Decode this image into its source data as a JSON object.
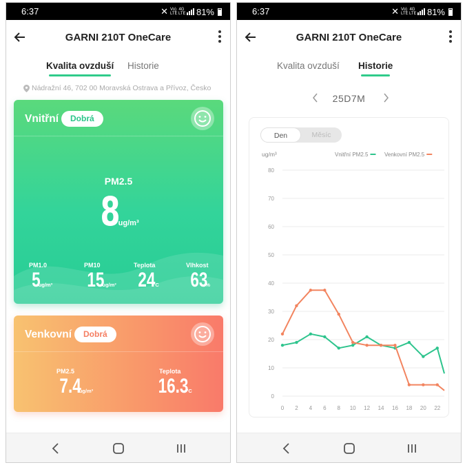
{
  "status_bar": {
    "time": "6:37",
    "battery": "81%",
    "small_icons": [
      "Vo) LTE",
      "4G LTE"
    ]
  },
  "app": {
    "title": "GARNI 210T OneCare"
  },
  "tabs": {
    "quality": "Kvalita ovzduší",
    "history": "Historie"
  },
  "left_screen": {
    "active_tab": "quality",
    "address": "Nádražní 46, 702 00 Moravská Ostrava a Přívoz, Česko",
    "indoor": {
      "label": "Vnitřní",
      "status": "Dobrá",
      "main_label": "PM2.5",
      "main_value": "8",
      "main_unit": "ug/m³",
      "metrics": [
        {
          "label": "PM1.0",
          "value": "5",
          "unit": "ug/m³"
        },
        {
          "label": "PM10",
          "value": "15",
          "unit": "ug/m³"
        },
        {
          "label": "Teplota",
          "value": "24",
          "unit": "°C"
        },
        {
          "label": "Vlhkost",
          "value": "63",
          "unit": "%"
        }
      ]
    },
    "outdoor": {
      "label": "Venkovní",
      "status": "Dobrá",
      "metrics": [
        {
          "label": "PM2.5",
          "value": "7.4",
          "unit": "ug/m³"
        },
        {
          "label": "Teplota",
          "value": "16.3",
          "unit": "°C"
        }
      ]
    }
  },
  "right_screen": {
    "active_tab": "history",
    "date_label": "25D7M",
    "toggle": {
      "day": "Den",
      "month": "Měsíc",
      "selected": "day"
    }
  },
  "colors": {
    "green": "#2fcb8a",
    "indoor_series": "#2ec48d",
    "outdoor_series": "#f2845f",
    "grid": "#ebebeb",
    "axis_text": "#999999"
  },
  "chart_data": {
    "type": "line",
    "ylabel": "ug/m³",
    "ylim": [
      0,
      80
    ],
    "yticks": [
      0,
      10,
      20,
      30,
      40,
      50,
      60,
      70,
      80
    ],
    "xlim": [
      0,
      23
    ],
    "xticks": [
      0,
      2,
      4,
      6,
      8,
      10,
      12,
      14,
      16,
      18,
      20,
      22
    ],
    "grid": true,
    "legend_position": "top-right",
    "series": [
      {
        "name": "Vnitřní PM2.5",
        "color": "#2ec48d",
        "x": [
          0,
          2,
          4,
          6,
          8,
          10,
          12,
          14,
          16,
          18,
          20,
          22,
          23
        ],
        "values": [
          18,
          19,
          22,
          21,
          17,
          18,
          21,
          18,
          17,
          19,
          14,
          17,
          8
        ]
      },
      {
        "name": "Venkovní PM2.5",
        "color": "#f2845f",
        "x": [
          0,
          2,
          4,
          6,
          8,
          10,
          12,
          14,
          16,
          18,
          20,
          22,
          23
        ],
        "values": [
          22,
          32,
          37.5,
          37.5,
          29,
          19,
          18,
          18,
          18,
          4,
          4,
          4,
          2
        ]
      }
    ]
  },
  "nav_bar": {
    "buttons": [
      "back",
      "home",
      "recents"
    ]
  }
}
